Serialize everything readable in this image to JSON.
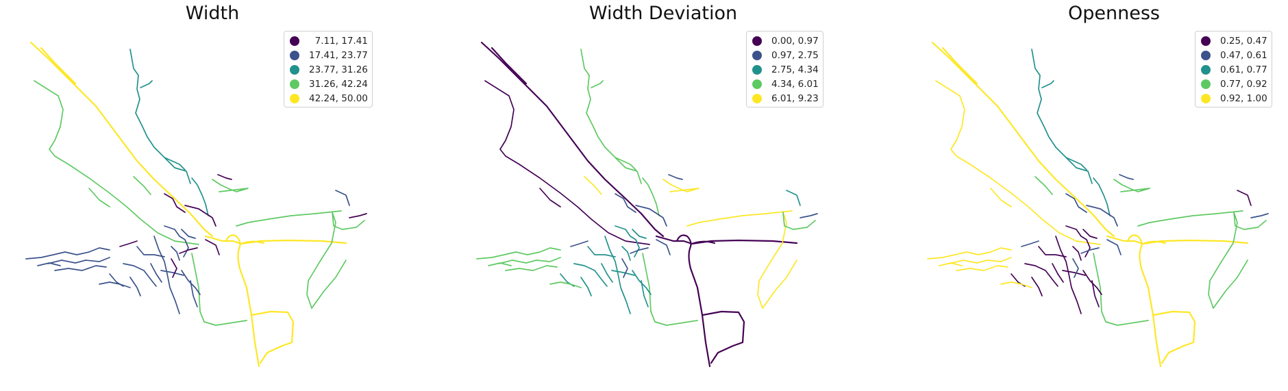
{
  "panels": [
    {
      "title": "Width",
      "legend": [
        "  7.11, 17.41",
        "17.41, 23.77",
        "23.77, 31.26",
        "31.26, 42.24",
        "42.24, 50.00"
      ],
      "colors": {
        "highway": "#fde725",
        "ring": "#fde725",
        "south": "#fde725",
        "nw_road": "#5ec962",
        "branch": "#5ec962",
        "east_road": "#5ec962",
        "north_road": "#21918c",
        "town": "#3b528b",
        "west": "#3b528b",
        "misc": "#440154"
      }
    },
    {
      "title": "Width Deviation",
      "legend": [
        "0.00, 0.97",
        "0.97, 2.75",
        "2.75, 4.34",
        "4.34, 6.01",
        "6.01, 9.23"
      ],
      "colors": {
        "highway": "#440154",
        "ring": "#440154",
        "south": "#440154",
        "nw_road": "#440154",
        "branch": "#fde725",
        "east_road": "#5ec962",
        "north_road": "#5ec962",
        "town": "#21918c",
        "west": "#5ec962",
        "misc": "#3b528b"
      }
    },
    {
      "title": "Openness",
      "legend": [
        "0.25, 0.47",
        "0.47, 0.61",
        "0.61, 0.77",
        "0.77, 0.92",
        "0.92, 1.00"
      ],
      "colors": {
        "highway": "#fde725",
        "ring": "#fde725",
        "south": "#fde725",
        "nw_road": "#fde725",
        "branch": "#5ec962",
        "east_road": "#5ec962",
        "north_road": "#21918c",
        "town": "#440154",
        "west": "#fde725",
        "misc": "#3b528b"
      }
    }
  ],
  "palette": [
    "#440154",
    "#3b528b",
    "#21918c",
    "#5ec962",
    "#fde725"
  ]
}
